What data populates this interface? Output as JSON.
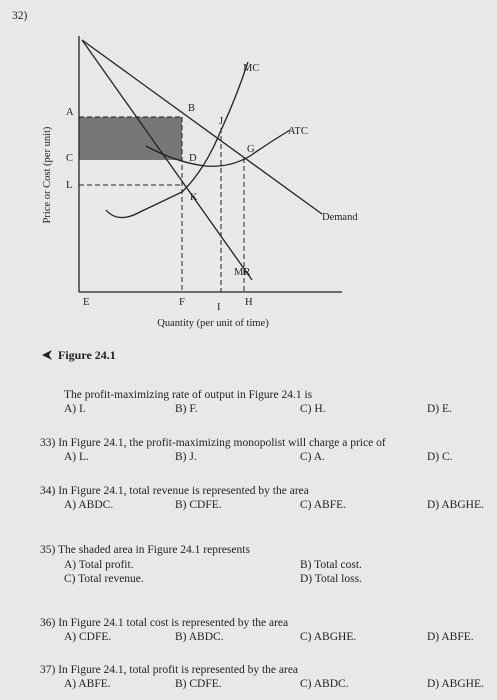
{
  "question_number": "32)",
  "figure": {
    "y_axis_label": "Price or Cost (per unit)",
    "x_axis_label": "Quantity (per unit of time)",
    "point_labels": [
      "A",
      "B",
      "C",
      "D",
      "J",
      "G",
      "L",
      "K",
      "E",
      "F",
      "I",
      "H"
    ],
    "curve_labels": [
      "MC",
      "ATC",
      "Demand",
      "MR"
    ],
    "caption": "Figure 24.1"
  },
  "questions": [
    {
      "text": "The profit-maximizing rate of output in Figure 24.1 is",
      "options": [
        "A) I.",
        "B) F.",
        "C) H.",
        "D) E."
      ]
    },
    {
      "text": "33) In Figure 24.1, the profit-maximizing monopolist will charge a price of",
      "options": [
        "A) L.",
        "B) J.",
        "C) A.",
        "D) C."
      ]
    },
    {
      "text": "34) In Figure 24.1, total revenue is represented by the area",
      "options": [
        "A) ABDC.",
        "B) CDFE.",
        "C) ABFE.",
        "D) ABGHE."
      ]
    },
    {
      "text": "35) The shaded area in Figure 24.1 represents",
      "options": [
        "A) Total profit.",
        "B) Total cost.",
        "C) Total revenue.",
        "D) Total loss."
      ]
    },
    {
      "text": "36) In Figure 24.1 total cost is represented by the area",
      "options": [
        "A) CDFE.",
        "B) ABDC.",
        "C) ABGHE.",
        "D) ABFE."
      ]
    },
    {
      "text": "37) In Figure 24.1, total profit is represented by the area",
      "options": [
        "A) ABFE.",
        "B) CDFE.",
        "C) ABDC.",
        "D) ABGHE."
      ]
    }
  ]
}
